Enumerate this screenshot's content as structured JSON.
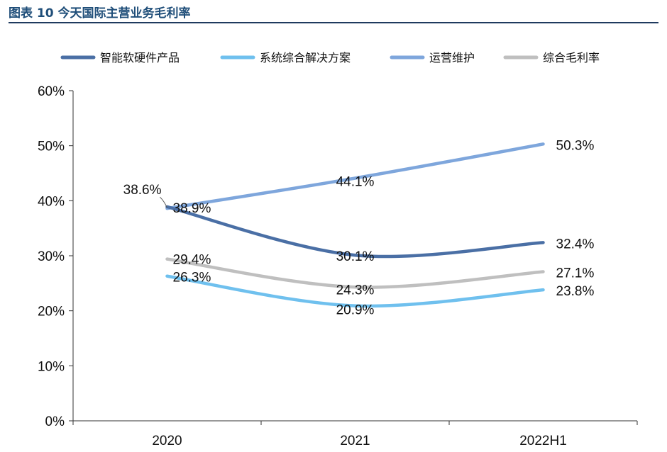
{
  "header": {
    "title": "图表 10 今天国际主营业务毛利率"
  },
  "chart_data": {
    "type": "line",
    "categories": [
      "2020",
      "2021",
      "2022H1"
    ],
    "ylim": [
      0,
      60
    ],
    "yticks": [
      "0%",
      "10%",
      "20%",
      "30%",
      "40%",
      "50%",
      "60%"
    ],
    "legend_position": "top",
    "series": [
      {
        "name": "智能软硬件产品",
        "values": [
          38.9,
          30.1,
          32.4
        ],
        "labels": [
          "38.9%",
          "30.1%",
          "32.4%"
        ],
        "color": "#4a6fa5"
      },
      {
        "name": "系统综合解决方案",
        "values": [
          26.3,
          20.9,
          23.8
        ],
        "labels": [
          "26.3%",
          "20.9%",
          "23.8%"
        ],
        "color": "#6fc0ee"
      },
      {
        "name": "运营维护",
        "values": [
          38.6,
          44.1,
          50.3
        ],
        "labels": [
          "38.6%",
          "44.1%",
          "50.3%"
        ],
        "color": "#7ea6dc"
      },
      {
        "name": "综合毛利率",
        "values": [
          29.4,
          24.3,
          27.1
        ],
        "labels": [
          "29.4%",
          "24.3%",
          "27.1%"
        ],
        "color": "#bfbfbf"
      }
    ]
  }
}
